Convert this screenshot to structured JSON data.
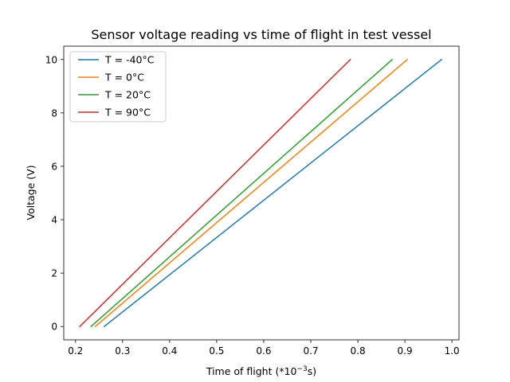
{
  "chart_data": {
    "type": "line",
    "title": "Sensor voltage reading vs time of flight in test vessel",
    "xlabel": {
      "prefix": "Time of flight (*10",
      "sup": "−3",
      "suffix": "s)"
    },
    "ylabel": "Voltage (V)",
    "xlim": [
      0.175,
      1.015
    ],
    "ylim": [
      -0.5,
      10.5
    ],
    "xticks": [
      0.2,
      0.3,
      0.4,
      0.5,
      0.6,
      0.7,
      0.8,
      0.9,
      1.0
    ],
    "xtick_labels": [
      "0.2",
      "0.3",
      "0.4",
      "0.5",
      "0.6",
      "0.7",
      "0.8",
      "0.9",
      "1.0"
    ],
    "yticks": [
      0,
      2,
      4,
      6,
      8,
      10
    ],
    "ytick_labels": [
      "0",
      "2",
      "4",
      "6",
      "8",
      "10"
    ],
    "grid": false,
    "legend_position": "top-left",
    "series": [
      {
        "name": "T = -40°C",
        "color": "#1f77b4",
        "x": [
          0.261,
          0.978
        ],
        "y": [
          0,
          10
        ]
      },
      {
        "name": "T = 0°C",
        "color": "#ff7f0e",
        "x": [
          0.242,
          0.905
        ],
        "y": [
          0,
          10
        ]
      },
      {
        "name": "T = 20°C",
        "color": "#2ca02c",
        "x": [
          0.233,
          0.873
        ],
        "y": [
          0,
          10
        ]
      },
      {
        "name": "T = 90°C",
        "color": "#d62728",
        "x": [
          0.209,
          0.784
        ],
        "y": [
          0,
          10
        ]
      }
    ]
  }
}
